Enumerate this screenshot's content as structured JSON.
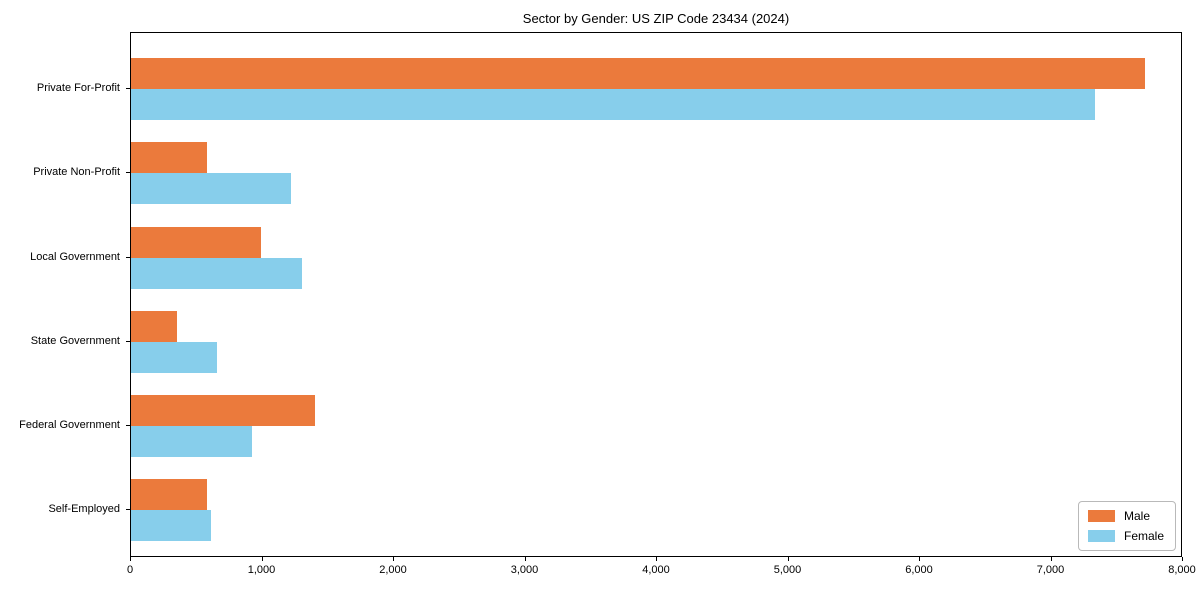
{
  "figure": {
    "title": "Sector by Gender: US ZIP Code 23434 (2024)"
  },
  "chart_data": {
    "type": "bar",
    "orientation": "horizontal",
    "title": "Sector by Gender: US ZIP Code 23434 (2024)",
    "categories": [
      "Private For-Profit",
      "Private Non-Profit",
      "Local Government",
      "State Government",
      "Federal Government",
      "Self-Employed"
    ],
    "series": [
      {
        "name": "Male",
        "color": "#EB7A3C",
        "values": [
          7710,
          580,
          990,
          350,
          1400,
          575
        ]
      },
      {
        "name": "Female",
        "color": "#87CEEB",
        "values": [
          7330,
          1220,
          1300,
          655,
          920,
          605
        ]
      }
    ],
    "xlabel": "",
    "ylabel": "",
    "xlim": [
      0,
      8000
    ],
    "x_ticks": [
      {
        "value": 0,
        "label": "0"
      },
      {
        "value": 1000,
        "label": "1,000"
      },
      {
        "value": 2000,
        "label": "2,000"
      },
      {
        "value": 3000,
        "label": "3,000"
      },
      {
        "value": 4000,
        "label": "4,000"
      },
      {
        "value": 5000,
        "label": "5,000"
      },
      {
        "value": 6000,
        "label": "6,000"
      },
      {
        "value": 7000,
        "label": "7,000"
      },
      {
        "value": 8000,
        "label": "8,000"
      }
    ],
    "grid": false,
    "legend": {
      "position": "lower right",
      "entries": [
        "Male",
        "Female"
      ]
    }
  }
}
